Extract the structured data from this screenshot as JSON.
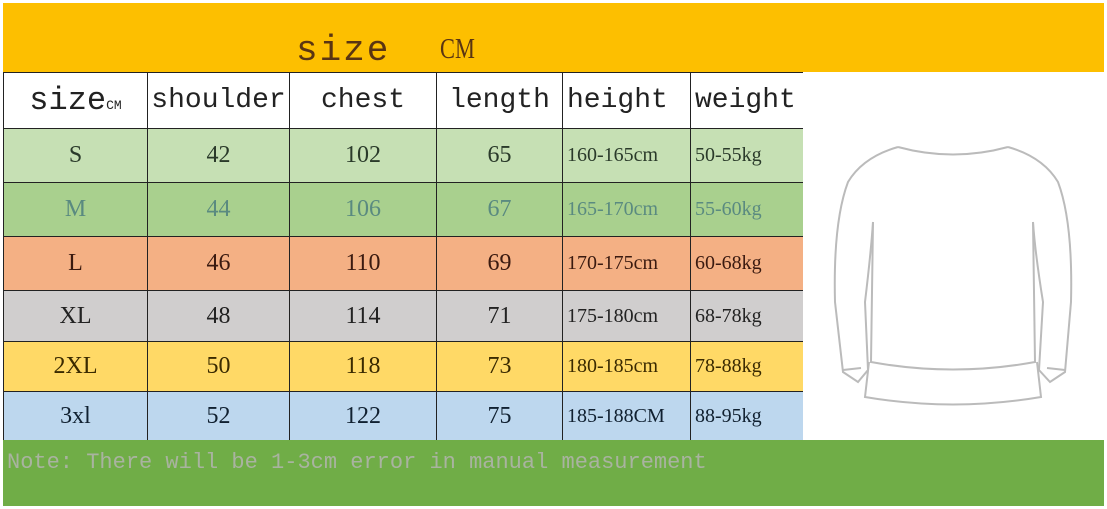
{
  "title": {
    "text": "size",
    "unit": "CM"
  },
  "headers": {
    "size": "size",
    "size_unit": "CM",
    "shoulder": "shoulder",
    "chest": "chest",
    "length": "length",
    "height": "height",
    "weight": "weight"
  },
  "rows": [
    {
      "size": "S",
      "shoulder": "42",
      "chest": "102",
      "length": "65",
      "height": "160-165cm",
      "weight": "50-55kg",
      "bg": "#c6e0b4",
      "color": "#2a3a2a"
    },
    {
      "size": "M",
      "shoulder": "44",
      "chest": "106",
      "length": "67",
      "height": "165-170cm",
      "weight": "55-60kg",
      "bg": "#a9d08e",
      "color": "#5a8a80"
    },
    {
      "size": "L",
      "shoulder": "46",
      "chest": "110",
      "length": "69",
      "height": "170-175cm",
      "weight": "60-68kg",
      "bg": "#f4b084",
      "color": "#3a1a10"
    },
    {
      "size": "XL",
      "shoulder": "48",
      "chest": "114",
      "length": "71",
      "height": "175-180cm",
      "weight": "68-78kg",
      "bg": "#d0cece",
      "color": "#222222"
    },
    {
      "size": "2XL",
      "shoulder": "50",
      "chest": "118",
      "length": "73",
      "height": "180-185cm",
      "weight": "78-88kg",
      "bg": "#ffd966",
      "color": "#3a2a00"
    },
    {
      "size": "3xl",
      "shoulder": "52",
      "chest": "122",
      "length": "75",
      "height": "185-188CM",
      "weight": "88-95kg",
      "bg": "#bdd7ee",
      "color": "#102030"
    }
  ],
  "note": "Note: There will be 1-3cm error in manual measurement",
  "colors": {
    "top_bar": "#fdbf00",
    "note_bar": "#70ad47"
  },
  "image": "sweatshirt-outline"
}
